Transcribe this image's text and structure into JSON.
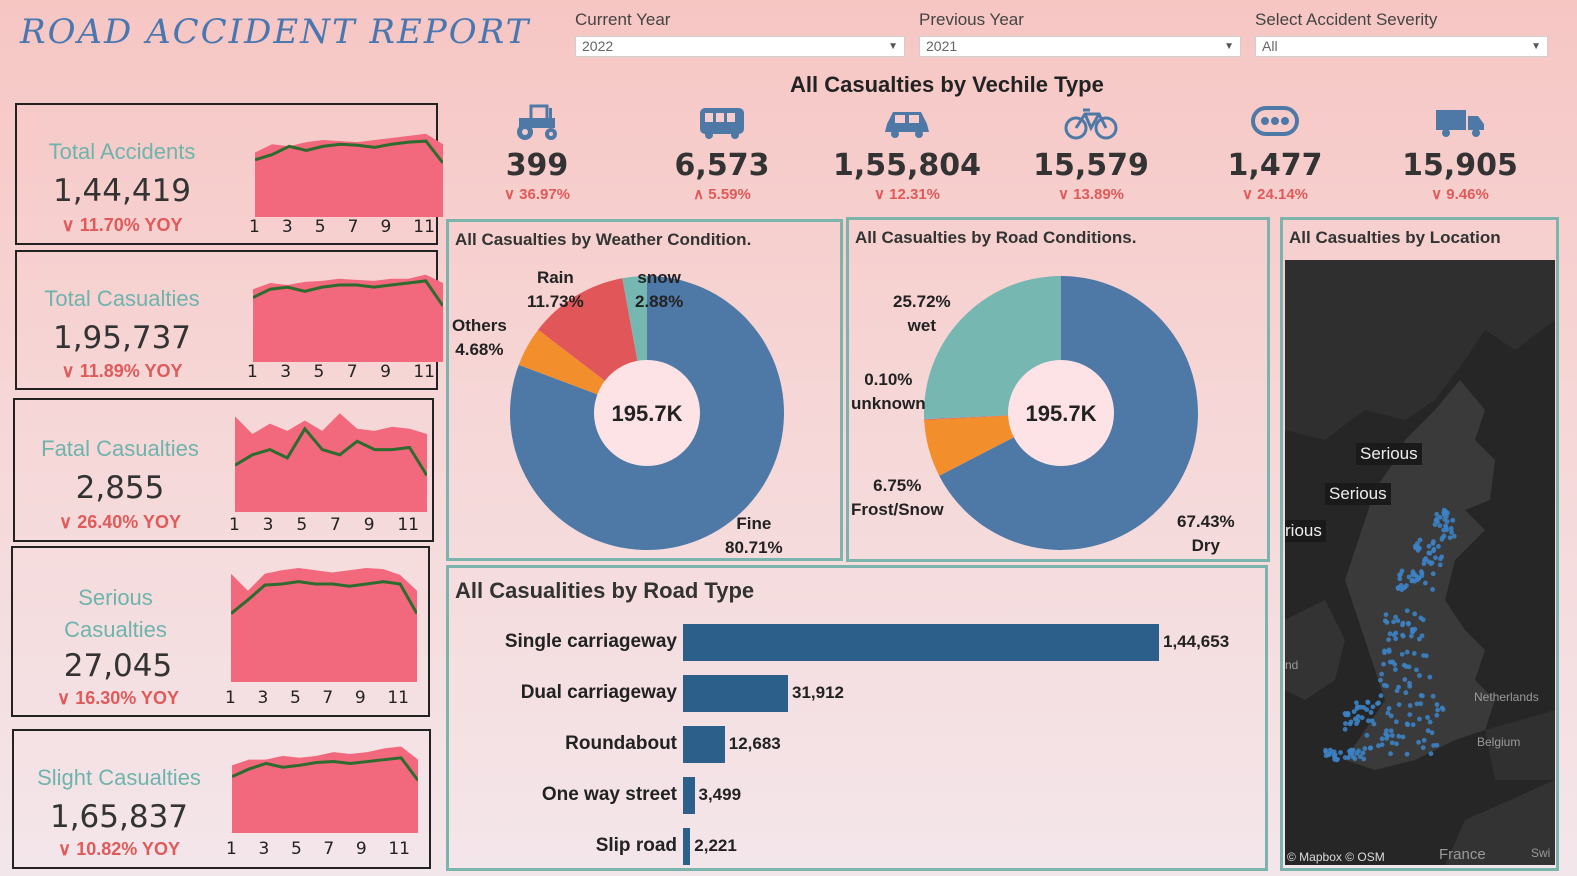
{
  "header": {
    "title": "ROAD ACCIDENT REPORT",
    "filters": [
      {
        "label": "Current Year",
        "value": "2022"
      },
      {
        "label": "Previous Year",
        "value": "2021"
      },
      {
        "label": "Select Accident Severity",
        "value": "All"
      }
    ]
  },
  "kpis": [
    {
      "name": "Total Accidents",
      "value": "1,44,419",
      "yoy": "∨ 11.70% YOY",
      "area": [
        0.62,
        0.7,
        0.68,
        0.72,
        0.74,
        0.73,
        0.72,
        0.74,
        0.76,
        0.78,
        0.8,
        0.7
      ],
      "line": [
        0.55,
        0.6,
        0.68,
        0.64,
        0.68,
        0.7,
        0.69,
        0.67,
        0.7,
        0.72,
        0.73,
        0.52
      ]
    },
    {
      "name": "Total Casualties",
      "value": "1,95,737",
      "yoy": "∨ 11.89% YOY",
      "area": [
        0.7,
        0.76,
        0.74,
        0.77,
        0.78,
        0.8,
        0.79,
        0.78,
        0.8,
        0.8,
        0.84,
        0.76
      ],
      "line": [
        0.62,
        0.7,
        0.72,
        0.68,
        0.72,
        0.74,
        0.74,
        0.72,
        0.74,
        0.76,
        0.78,
        0.54
      ]
    },
    {
      "name": "Fatal Casualties",
      "value": "2,855",
      "yoy": "∨ 26.40% YOY",
      "area": [
        0.92,
        0.75,
        0.85,
        0.78,
        0.88,
        0.78,
        0.95,
        0.8,
        0.78,
        0.82,
        0.8,
        0.75
      ],
      "line": [
        0.45,
        0.55,
        0.6,
        0.52,
        0.8,
        0.6,
        0.55,
        0.68,
        0.6,
        0.6,
        0.62,
        0.35
      ]
    },
    {
      "name": "Serious Casualties",
      "value": "27,045",
      "yoy": "∨ 16.30% YOY",
      "area": [
        0.95,
        0.8,
        0.95,
        0.98,
        1.0,
        0.98,
        0.96,
        0.98,
        1.0,
        0.99,
        0.94,
        0.8
      ],
      "line": [
        0.6,
        0.72,
        0.85,
        0.86,
        0.88,
        0.86,
        0.86,
        0.84,
        0.86,
        0.88,
        0.86,
        0.6
      ]
    },
    {
      "name": "Slight Casualties",
      "value": "1,65,837",
      "yoy": "∨ 10.82% YOY",
      "area": [
        0.72,
        0.78,
        0.78,
        0.82,
        0.8,
        0.82,
        0.86,
        0.84,
        0.86,
        0.9,
        0.92,
        0.78
      ],
      "line": [
        0.6,
        0.68,
        0.74,
        0.7,
        0.72,
        0.75,
        0.76,
        0.74,
        0.76,
        0.78,
        0.8,
        0.56
      ]
    }
  ],
  "months": [
    "1",
    "3",
    "5",
    "7",
    "9",
    "11"
  ],
  "vehicles": {
    "title": "All Casualties by Vechile Type",
    "items": [
      {
        "icon": "tractor-icon",
        "value": "399",
        "change": "∨ 36.97%"
      },
      {
        "icon": "bus-icon",
        "value": "6,573",
        "change": "∧ 5.59%"
      },
      {
        "icon": "car-icon",
        "value": "1,55,804",
        "change": "∨ 12.31%"
      },
      {
        "icon": "bicycle-icon",
        "value": "15,579",
        "change": "∨ 13.89%"
      },
      {
        "icon": "other-vehicle-icon",
        "value": "1,477",
        "change": "∨ 24.14%"
      },
      {
        "icon": "truck-icon",
        "value": "15,905",
        "change": "∨ 9.46%"
      }
    ]
  },
  "colors": {
    "blue": "#4e79a7",
    "orange": "#f28e2b",
    "red": "#e15759",
    "teal": "#76b7b2",
    "area": "#f2687d",
    "line": "#2d6b2f",
    "bar": "#2c5f8a"
  },
  "chart_data": [
    {
      "type": "pie",
      "title": "All Casualties by Weather Condition.",
      "center": "195.7K",
      "slices": [
        {
          "name": "Fine",
          "pct": 80.71,
          "label": "Fine\n80.71%",
          "color": "#4e79a7"
        },
        {
          "name": "Others",
          "pct": 4.68,
          "label": "Others\n4.68%",
          "color": "#f28e2b"
        },
        {
          "name": "Rain",
          "pct": 11.73,
          "label": "Rain\n11.73%",
          "color": "#e15759"
        },
        {
          "name": "snow",
          "pct": 2.88,
          "label": "snow\n2.88%",
          "color": "#76b7b2"
        }
      ]
    },
    {
      "type": "pie",
      "title": "All Casualties by Road Conditions.",
      "center": "195.7K",
      "slices": [
        {
          "name": "Dry",
          "pct": 67.43,
          "label": "67.43%\nDry",
          "color": "#4e79a7"
        },
        {
          "name": "Frost/Snow",
          "pct": 6.75,
          "label": "6.75%\nFrost/Snow",
          "color": "#f28e2b"
        },
        {
          "name": "unknown",
          "pct": 0.1,
          "label": "0.10%\nunknown",
          "color": "#e15759"
        },
        {
          "name": "wet",
          "pct": 25.72,
          "label": "25.72%\nwet",
          "color": "#76b7b2"
        }
      ]
    },
    {
      "type": "bar",
      "title": "All Casualities by Road Type",
      "categories": [
        "Single carriageway",
        "Dual carriageway",
        "Roundabout",
        "One way street",
        "Slip road"
      ],
      "values": [
        144653,
        31912,
        12683,
        3499,
        2221
      ],
      "value_labels": [
        "1,44,653",
        "31,912",
        "12,683",
        "3,499",
        "2,221"
      ]
    }
  ],
  "map": {
    "title": "All Casualties by Location",
    "tags": [
      "Serious",
      "Serious",
      "rious"
    ],
    "places": [
      "Netherlands",
      "Belgium",
      "France",
      "nd",
      "Swi"
    ],
    "credit": "© Mapbox © OSM"
  }
}
